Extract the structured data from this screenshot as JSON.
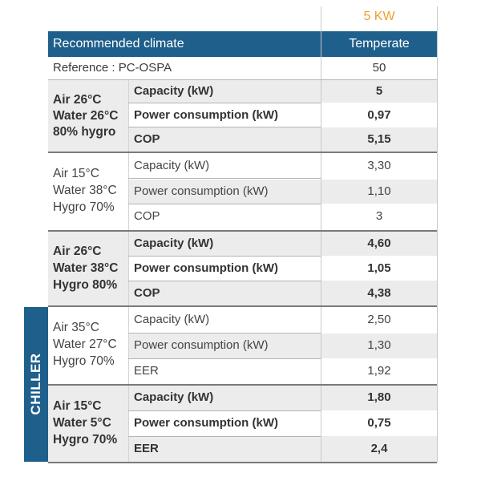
{
  "header": {
    "power_rating": "5 KW",
    "recommended_climate_label": "Recommended climate",
    "climate_value": "Temperate",
    "reference_label": "Reference : PC-OSPA",
    "reference_value": "50"
  },
  "sections": [
    {
      "conditions": [
        "Air 26°C",
        "Water 26°C",
        "80% hygro"
      ],
      "rows": [
        {
          "label": "Capacity (kW)",
          "value": "5"
        },
        {
          "label": "Power consumption (kW)",
          "value": "0,97"
        },
        {
          "label": "COP",
          "value": "5,15"
        }
      ]
    },
    {
      "conditions": [
        "Air 15°C",
        "Water 38°C",
        "Hygro 70%"
      ],
      "rows": [
        {
          "label": "Capacity (kW)",
          "value": "3,30"
        },
        {
          "label": "Power consumption (kW)",
          "value": "1,10"
        },
        {
          "label": "COP",
          "value": "3"
        }
      ]
    },
    {
      "conditions": [
        "Air 26°C",
        "Water 38°C",
        "Hygro 80%"
      ],
      "rows": [
        {
          "label": "Capacity (kW)",
          "value": "4,60"
        },
        {
          "label": "Power consumption (kW)",
          "value": "1,05"
        },
        {
          "label": "COP",
          "value": "4,38"
        }
      ]
    },
    {
      "conditions": [
        "Air 35°C",
        "Water 27°C",
        "Hygro 70%"
      ],
      "rows": [
        {
          "label": "Capacity (kW)",
          "value": "2,50"
        },
        {
          "label": "Power consumption (kW)",
          "value": "1,30"
        },
        {
          "label": "EER",
          "value": "1,92"
        }
      ]
    },
    {
      "conditions": [
        "Air 15°C",
        "Water 5°C",
        "Hygro 70%"
      ],
      "rows": [
        {
          "label": "Capacity (kW)",
          "value": "1,80"
        },
        {
          "label": "Power consumption (kW)",
          "value": "0,75"
        },
        {
          "label": "EER",
          "value": "2,4"
        }
      ]
    }
  ],
  "chiller_label": "CHILLER",
  "colors": {
    "header_blue": "#1f5f8b",
    "power_orange": "#f0a030",
    "row_shade": "#ececec"
  }
}
